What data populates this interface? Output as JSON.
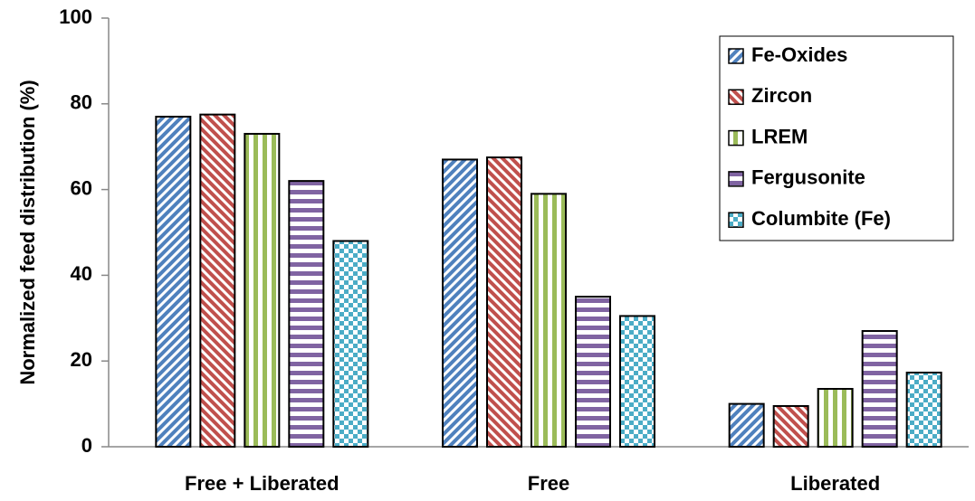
{
  "chart_data": {
    "type": "bar",
    "y_label": "Normalized feed distribution (%)",
    "categories": [
      "Free + Liberated",
      "Free",
      "Liberated"
    ],
    "series": [
      {
        "name": "Fe-Oxides",
        "color": "#4f81bd",
        "pattern": "diagonal-up",
        "values": [
          77,
          67,
          10
        ]
      },
      {
        "name": "Zircon",
        "color": "#c0504d",
        "pattern": "diagonal-down",
        "values": [
          77.5,
          67.5,
          9.5
        ]
      },
      {
        "name": "LREM",
        "color": "#9bbb59",
        "pattern": "vertical",
        "values": [
          73,
          59,
          13.5
        ]
      },
      {
        "name": "Fergusonite",
        "color": "#8064a2",
        "pattern": "horizontal",
        "values": [
          62,
          35,
          27
        ]
      },
      {
        "name": "Columbite (Fe)",
        "color": "#4bacc6",
        "pattern": "checker",
        "values": [
          48,
          30.5,
          17.3
        ]
      }
    ],
    "ylim": [
      0,
      100
    ],
    "yticks": [
      0,
      20,
      40,
      60,
      80,
      100
    ],
    "grid": false,
    "legend": "upper right"
  }
}
